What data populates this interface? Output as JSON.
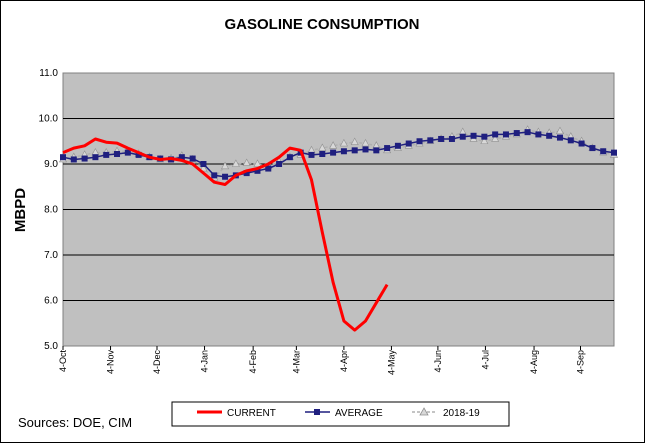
{
  "chart_data": {
    "type": "line",
    "title": "GASOLINE CONSUMPTION",
    "ylabel": "MBPD",
    "xlabel": "",
    "ylim": [
      5.0,
      11.0
    ],
    "ytick_labels": [
      "5.0",
      "6.0",
      "7.0",
      "8.0",
      "9.0",
      "10.0",
      "11.0"
    ],
    "xlim": [
      0,
      51
    ],
    "x_ticks": [
      {
        "x": 0,
        "label": "4-Oct"
      },
      {
        "x": 4.4,
        "label": "4-Nov"
      },
      {
        "x": 8.7,
        "label": "4-Dec"
      },
      {
        "x": 13.1,
        "label": "4-Jan"
      },
      {
        "x": 17.6,
        "label": "4-Feb"
      },
      {
        "x": 21.6,
        "label": "4-Mar"
      },
      {
        "x": 26,
        "label": "4-Apr"
      },
      {
        "x": 30.4,
        "label": "4-May"
      },
      {
        "x": 34.7,
        "label": "4-Jun"
      },
      {
        "x": 39.1,
        "label": "4-Jul"
      },
      {
        "x": 43.6,
        "label": "4-Aug"
      },
      {
        "x": 47.9,
        "label": "4-Sep"
      }
    ],
    "grid": true,
    "legend_position": "bottom",
    "series": [
      {
        "name": "CURRENT",
        "color": "#ff0000",
        "marker": "none",
        "x": [
          0,
          1,
          2,
          3,
          4,
          5,
          6,
          7,
          8,
          9,
          10,
          11,
          12,
          13,
          14,
          15,
          16,
          17,
          18,
          19,
          20,
          21,
          22,
          23,
          24,
          25,
          26,
          27,
          28,
          29,
          30
        ],
        "values": [
          9.25,
          9.35,
          9.4,
          9.55,
          9.48,
          9.46,
          9.35,
          9.25,
          9.15,
          9.1,
          9.12,
          9.08,
          9.0,
          8.8,
          8.6,
          8.55,
          8.75,
          8.85,
          8.9,
          9.0,
          9.15,
          9.35,
          9.3,
          8.65,
          7.5,
          6.4,
          5.55,
          5.35,
          5.55,
          5.95,
          6.35
        ]
      },
      {
        "name": "AVERAGE",
        "color": "#1f1f7f",
        "marker": "square",
        "x": [
          0,
          1,
          2,
          3,
          4,
          5,
          6,
          7,
          8,
          9,
          10,
          11,
          12,
          13,
          14,
          15,
          16,
          17,
          18,
          19,
          20,
          21,
          22,
          23,
          24,
          25,
          26,
          27,
          28,
          29,
          30,
          31,
          32,
          33,
          34,
          35,
          36,
          37,
          38,
          39,
          40,
          41,
          42,
          43,
          44,
          45,
          46,
          47,
          48,
          49,
          50,
          51
        ],
        "values": [
          9.15,
          9.1,
          9.12,
          9.15,
          9.2,
          9.22,
          9.25,
          9.2,
          9.15,
          9.12,
          9.1,
          9.15,
          9.12,
          9.0,
          8.75,
          8.72,
          8.75,
          8.8,
          8.85,
          8.9,
          9.0,
          9.15,
          9.25,
          9.2,
          9.22,
          9.25,
          9.28,
          9.3,
          9.32,
          9.3,
          9.35,
          9.4,
          9.45,
          9.5,
          9.52,
          9.55,
          9.55,
          9.6,
          9.62,
          9.6,
          9.65,
          9.65,
          9.68,
          9.7,
          9.65,
          9.62,
          9.58,
          9.52,
          9.45,
          9.35,
          9.28,
          9.25
        ]
      },
      {
        "name": "2018-19",
        "color": "#b0b0b0",
        "marker": "triangle",
        "x": [
          0,
          1,
          2,
          3,
          4,
          5,
          6,
          7,
          8,
          9,
          10,
          11,
          12,
          13,
          14,
          15,
          16,
          17,
          18,
          19,
          20,
          21,
          22,
          23,
          24,
          25,
          26,
          27,
          28,
          29,
          30,
          31,
          32,
          33,
          34,
          35,
          36,
          37,
          38,
          39,
          40,
          41,
          42,
          43,
          44,
          45,
          46,
          47,
          48,
          49,
          50,
          51
        ],
        "values": [
          9.1,
          9.15,
          9.2,
          9.25,
          9.25,
          9.28,
          9.28,
          9.22,
          9.15,
          9.1,
          9.12,
          9.18,
          9.1,
          8.9,
          8.7,
          8.95,
          9.0,
          9.02,
          9.0,
          8.95,
          9.05,
          9.15,
          9.2,
          9.3,
          9.35,
          9.4,
          9.45,
          9.48,
          9.45,
          9.4,
          9.3,
          9.35,
          9.4,
          9.45,
          9.5,
          9.55,
          9.6,
          9.7,
          9.55,
          9.5,
          9.55,
          9.6,
          9.65,
          9.75,
          9.7,
          9.68,
          9.72,
          9.6,
          9.5,
          9.35,
          9.25,
          9.2
        ]
      }
    ]
  },
  "footer": {
    "sources": "Sources:  DOE, CIM"
  },
  "legend": {
    "items": [
      "CURRENT",
      "AVERAGE",
      "2018-19"
    ]
  }
}
